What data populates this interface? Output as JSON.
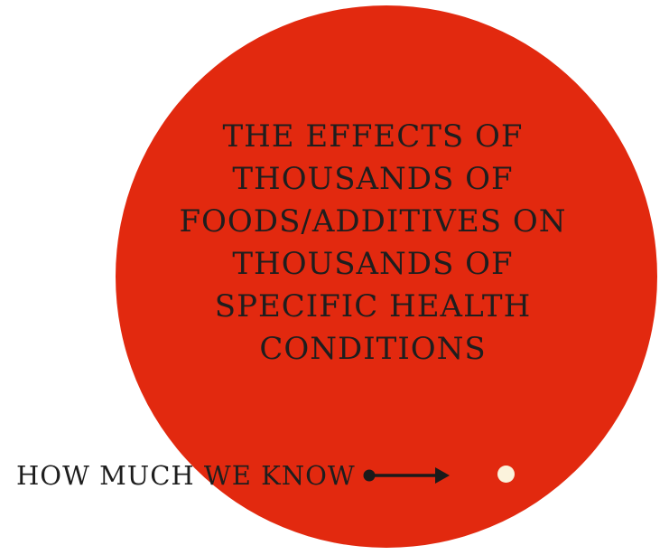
{
  "colors": {
    "circle_fill": "#e2290f",
    "text": "#1e1e1e",
    "dot": "#fbf3dc",
    "arrow": "#1a1a1a"
  },
  "circle": {
    "text": "THE EFFECTS OF THOUSANDS OF FOODS/ADDITIVES ON THOUSANDS OF SPECIFIC HEALTH CONDITIONS"
  },
  "caption": {
    "label": "HOW MUCH WE KNOW",
    "arrow_icon": "dot-arrow-right-icon",
    "dot_icon": "small-dot-icon"
  }
}
